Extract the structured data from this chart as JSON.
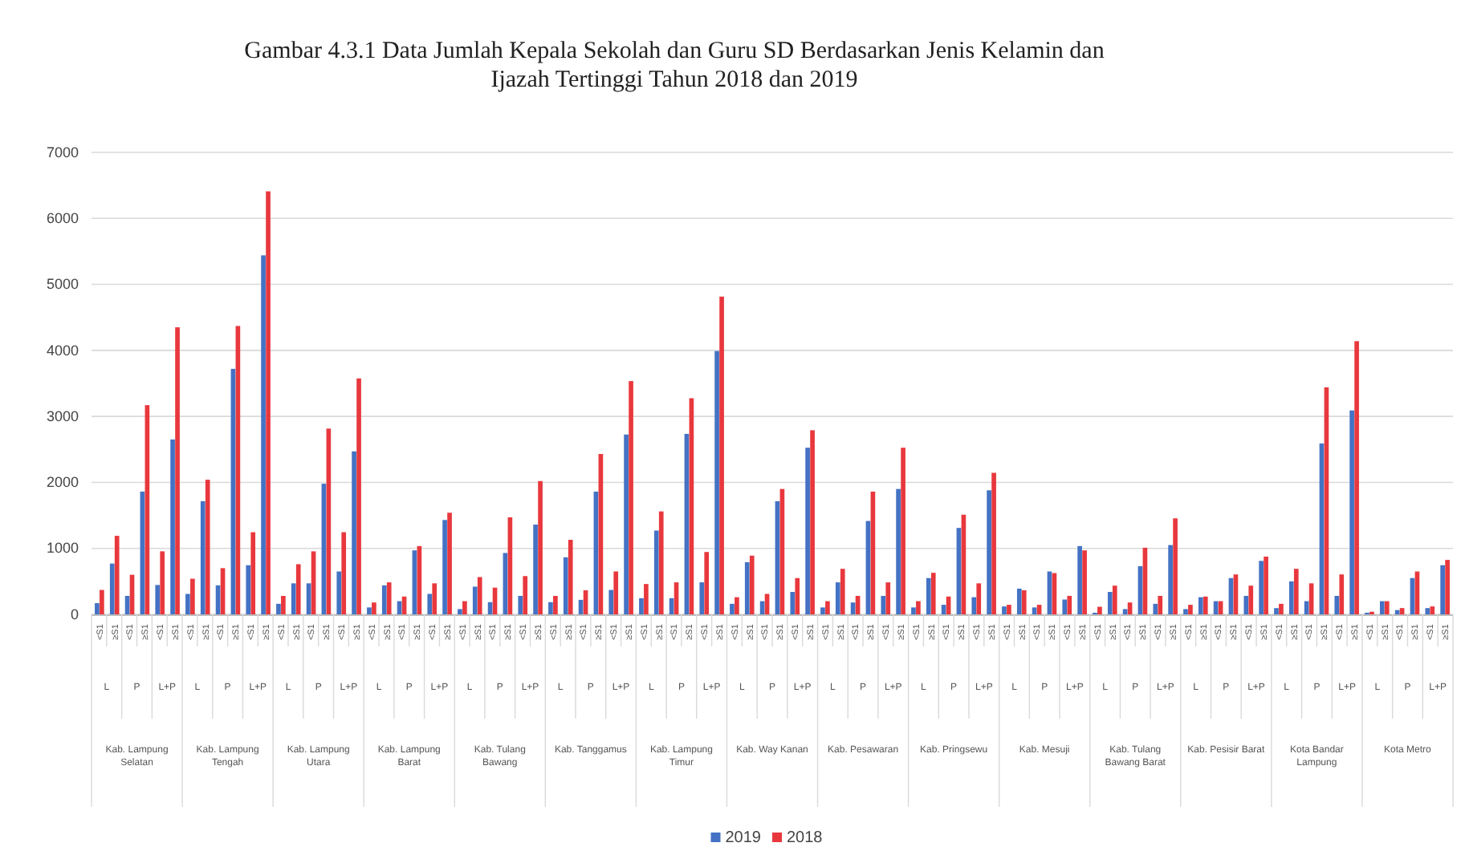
{
  "chart_data": {
    "type": "bar",
    "title": "Gambar 4.3.1 Data Jumlah Kepala Sekolah dan Guru SD Berdasarkan Jenis Kelamin dan\nIjazah Tertinggi Tahun 2018 dan 2019",
    "categories": [
      "<S1",
      "≥S1",
      "<S1",
      "≥S1",
      "<S1",
      "≥S1",
      "<S1",
      "≥S1",
      "<S1",
      "≥S1",
      "<S1",
      "≥S1",
      "<S1",
      "≥S1",
      "<S1",
      "≥S1",
      "<S1",
      "≥S1",
      "<S1",
      "≥S1",
      "<S1",
      "≥S1",
      "<S1",
      "≥S1",
      "<S1",
      "≥S1",
      "<S1",
      "≥S1",
      "<S1",
      "≥S1",
      "<S1",
      "≥S1",
      "<S1",
      "≥S1",
      "<S1",
      "≥S1",
      "<S1",
      "≥S1",
      "<S1",
      "≥S1",
      "<S1",
      "≥S1",
      "<S1",
      "≥S1",
      "<S1",
      "≥S1",
      "<S1",
      "≥S1",
      "<S1",
      "≥S1",
      "<S1",
      "≥S1",
      "<S1",
      "≥S1",
      "<S1",
      "≥S1",
      "<S1",
      "≥S1",
      "<S1",
      "≥S1",
      "<S1",
      "≥S1",
      "<S1",
      "≥S1",
      "<S1",
      "≥S1",
      "<S1",
      "≥S1",
      "<S1",
      "≥S1",
      "<S1",
      "≥S1",
      "<S1",
      "≥S1",
      "<S1",
      "≥S1",
      "<S1",
      "≥S1",
      "<S1",
      "≥S1",
      "<S1",
      "≥S1",
      "<S1",
      "≥S1",
      "<S1",
      "≥S1",
      "<S1",
      "≥S1",
      "<S1",
      "≥S1"
    ],
    "series": [
      {
        "name": "2019",
        "color": "#4472c4",
        "values": [
          170,
          770,
          280,
          1860,
          445,
          2650,
          310,
          1715,
          440,
          3720,
          745,
          5440,
          160,
          470,
          470,
          1980,
          650,
          2470,
          105,
          440,
          200,
          970,
          310,
          1430,
          80,
          420,
          185,
          930,
          280,
          1360,
          185,
          865,
          220,
          1860,
          370,
          2725,
          245,
          1270,
          245,
          2735,
          485,
          3990,
          160,
          790,
          200,
          1715,
          340,
          2525,
          105,
          485,
          180,
          1415,
          280,
          1900,
          105,
          550,
          145,
          1310,
          260,
          1880,
          120,
          390,
          105,
          650,
          225,
          1035,
          25,
          340,
          80,
          730,
          160,
          1050,
          80,
          260,
          200,
          550,
          280,
          810,
          95,
          500,
          200,
          2590,
          280,
          3090,
          25,
          200,
          65,
          550,
          95,
          745
        ]
      },
      {
        "name": "2018",
        "color": "#e8383d",
        "values": [
          370,
          1190,
          600,
          3170,
          955,
          4350,
          540,
          2040,
          700,
          4370,
          1245,
          6410,
          280,
          760,
          955,
          2815,
          1245,
          3575,
          180,
          485,
          270,
          1035,
          470,
          1540,
          200,
          565,
          405,
          1470,
          580,
          2020,
          280,
          1130,
          365,
          2430,
          650,
          3535,
          460,
          1560,
          485,
          3275,
          945,
          4815,
          260,
          890,
          310,
          1900,
          550,
          2790,
          200,
          690,
          280,
          1860,
          485,
          2525,
          200,
          630,
          270,
          1510,
          470,
          2145,
          145,
          365,
          145,
          625,
          280,
          970,
          115,
          435,
          180,
          1010,
          280,
          1455,
          145,
          270,
          200,
          605,
          435,
          875,
          160,
          690,
          470,
          3440,
          605,
          4140,
          40,
          200,
          95,
          650,
          120,
          825
        ]
      }
    ],
    "ylim": [
      0,
      7000
    ],
    "yticks": [
      0,
      1000,
      2000,
      3000,
      4000,
      5000,
      6000,
      7000
    ],
    "grid": "y",
    "legend": "bottom",
    "annotations": [
      "L",
      "P",
      "L+P",
      "L",
      "P",
      "L+P",
      "L",
      "P",
      "L+P",
      "L",
      "P",
      "L+P",
      "L",
      "P",
      "L+P",
      "L",
      "P",
      "L+P",
      "L",
      "P",
      "L+P",
      "L",
      "P",
      "L+P",
      "L",
      "P",
      "L+P",
      "L",
      "P",
      "L+P",
      "L",
      "P",
      "L+P",
      "L",
      "P",
      "L+P",
      "L",
      "P",
      "L+P",
      "L",
      "P",
      "L+P",
      "L",
      "P",
      "L+P",
      "Kab. Lampung Selatan",
      "Kab. Lampung Tengah",
      "Kab. Lampung Utara",
      "Kab. Lampung Barat",
      "Kab. Tulang Bawang",
      "Kab. Tanggamus",
      "Kab. Lampung Timur",
      "Kab. Way Kanan",
      "Kab. Pesawaran",
      "Kab. Pringsewu",
      "Kab. Mesuji",
      "Kab. Tulang Bawang Barat",
      "Kab. Pesisir Barat",
      "Kota Bandar Lampung",
      "Kota Metro"
    ]
  }
}
